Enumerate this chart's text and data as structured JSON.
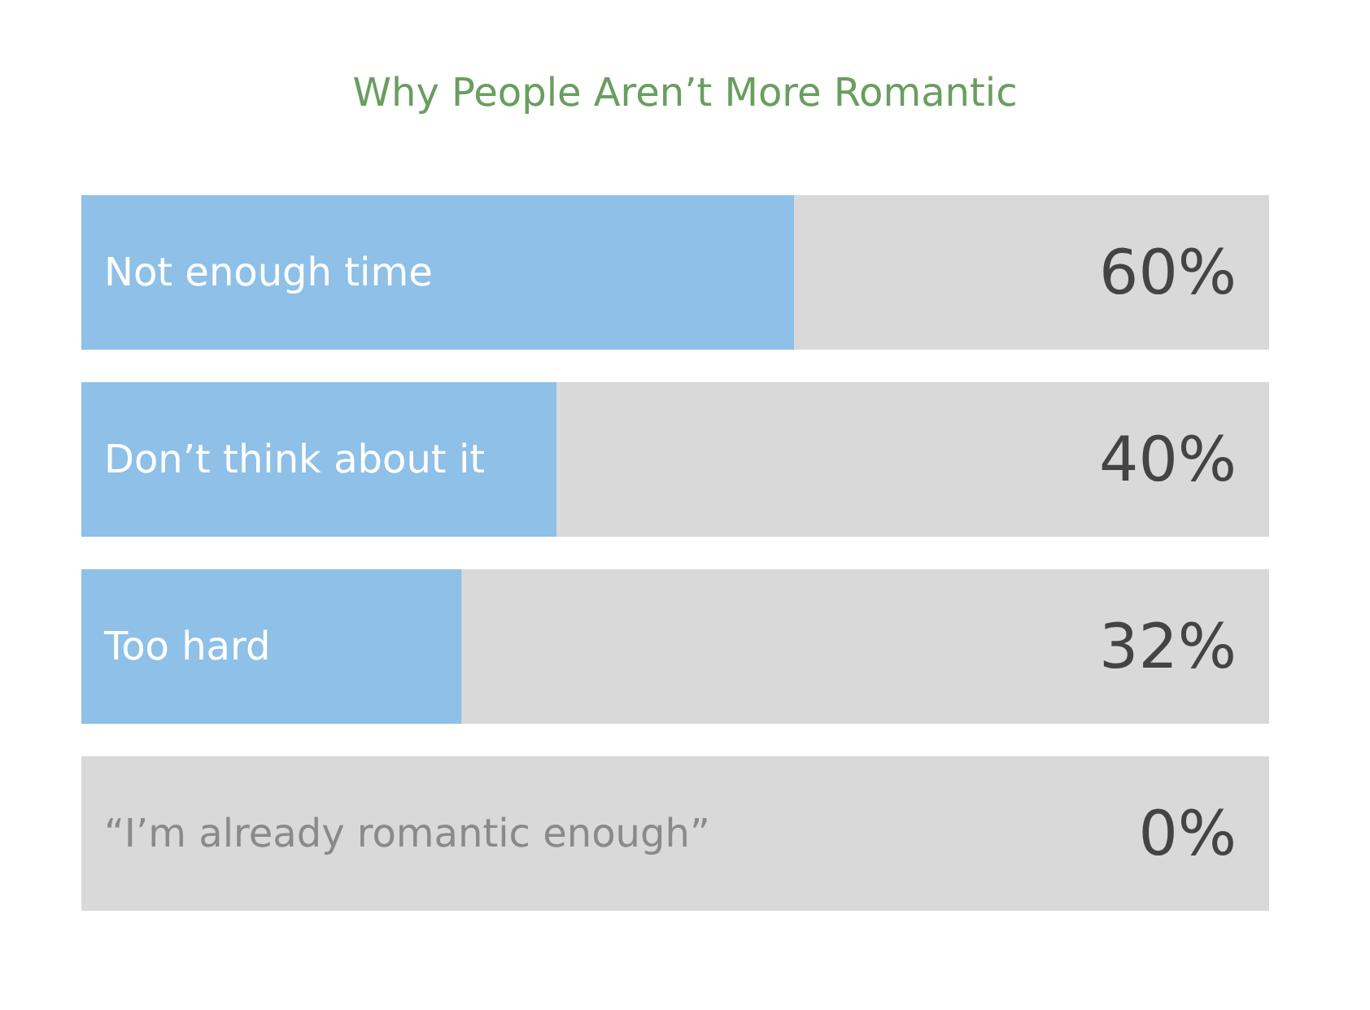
{
  "chart_data": {
    "type": "bar",
    "orientation": "horizontal",
    "title": "Why People Aren’t More Romantic",
    "categories": [
      "Not enough time",
      "Don’t think about it",
      "Too hard",
      "“I’m already romantic enough”"
    ],
    "values": [
      60,
      40,
      32,
      0
    ],
    "value_labels": [
      "60%",
      "40%",
      "32%",
      "0%"
    ],
    "color": "#8ec0e8",
    "xlim": [
      0,
      100
    ],
    "tick_labels": false
  }
}
